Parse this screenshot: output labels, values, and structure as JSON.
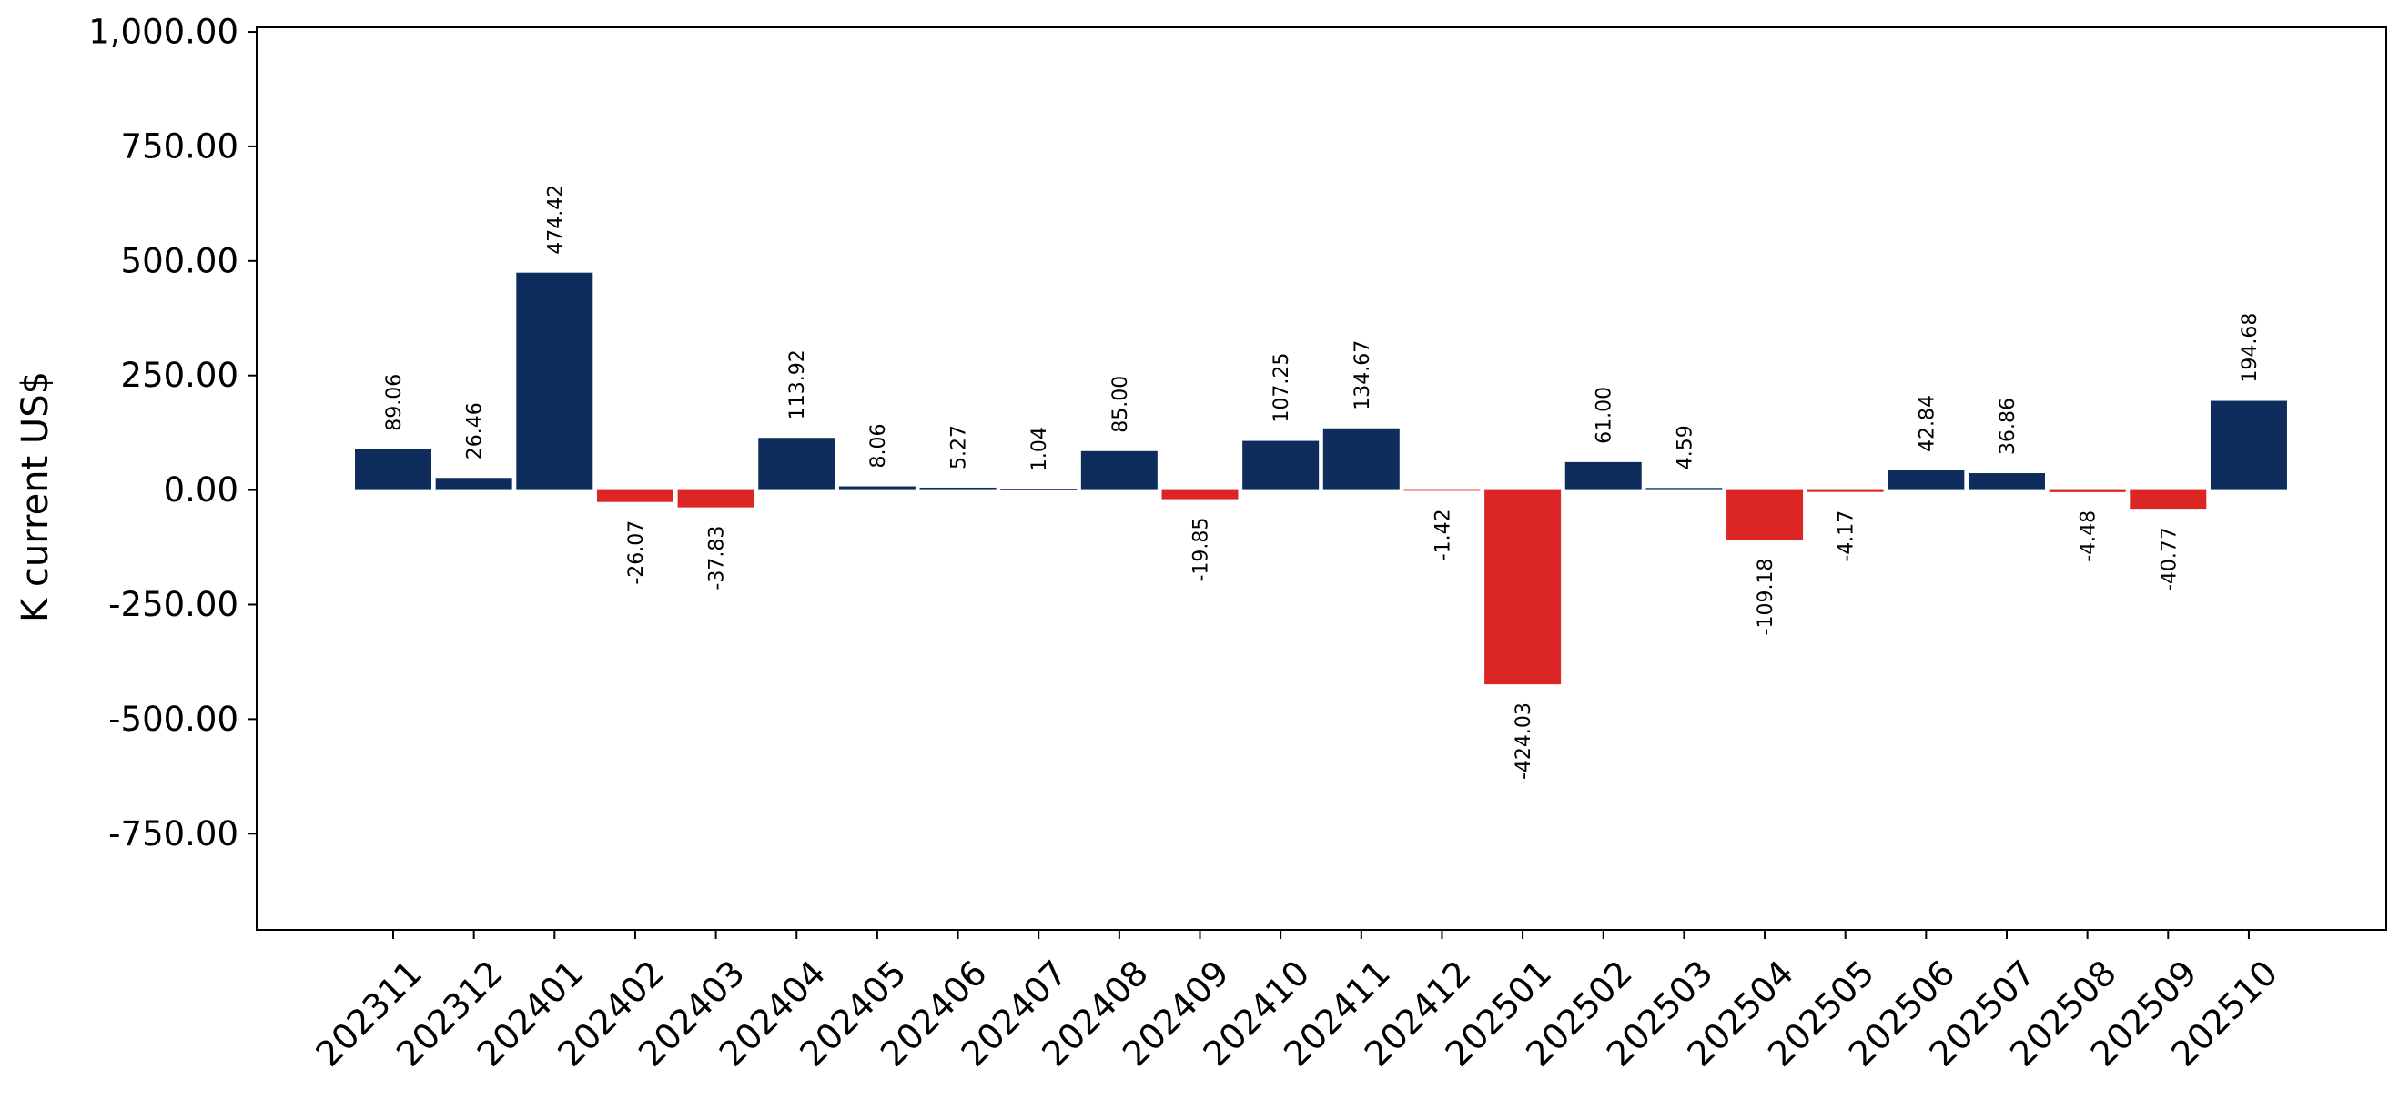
{
  "chart_data": {
    "type": "bar",
    "title": "",
    "xlabel": "",
    "ylabel": "K current US$",
    "ylim": [
      -960,
      1010
    ],
    "yticks": [
      -750,
      -500,
      -250,
      0,
      250,
      500,
      750,
      1000
    ],
    "ytick_labels": [
      "-750.00",
      "-500.00",
      "-250.00",
      "0.00",
      "250.00",
      "500.00",
      "750.00",
      "1,000.00"
    ],
    "grid": false,
    "legend": "none",
    "colors": {
      "positive": "#0e2d5c",
      "negative": "#dc2626"
    },
    "categories": [
      "202311",
      "202312",
      "202401",
      "202402",
      "202403",
      "202404",
      "202405",
      "202406",
      "202407",
      "202408",
      "202409",
      "202410",
      "202411",
      "202412",
      "202501",
      "202502",
      "202503",
      "202504",
      "202505",
      "202506",
      "202507",
      "202508",
      "202509",
      "202510"
    ],
    "values": [
      89.06,
      26.46,
      474.42,
      -26.07,
      -37.83,
      113.92,
      8.06,
      5.27,
      1.04,
      85.0,
      -19.85,
      107.25,
      134.67,
      -1.42,
      -424.03,
      61.0,
      4.59,
      -109.18,
      -4.17,
      42.84,
      36.86,
      -4.48,
      -40.77,
      194.68
    ],
    "value_labels": [
      "89.06",
      "26.46",
      "474.42",
      "-26.07",
      "-37.83",
      "113.92",
      "8.06",
      "5.27",
      "1.04",
      "85.00",
      "-19.85",
      "107.25",
      "134.67",
      "-1.42",
      "-424.03",
      "61.00",
      "4.59",
      "-109.18",
      "-4.17",
      "42.84",
      "36.86",
      "-4.48",
      "-40.77",
      "194.68"
    ]
  }
}
